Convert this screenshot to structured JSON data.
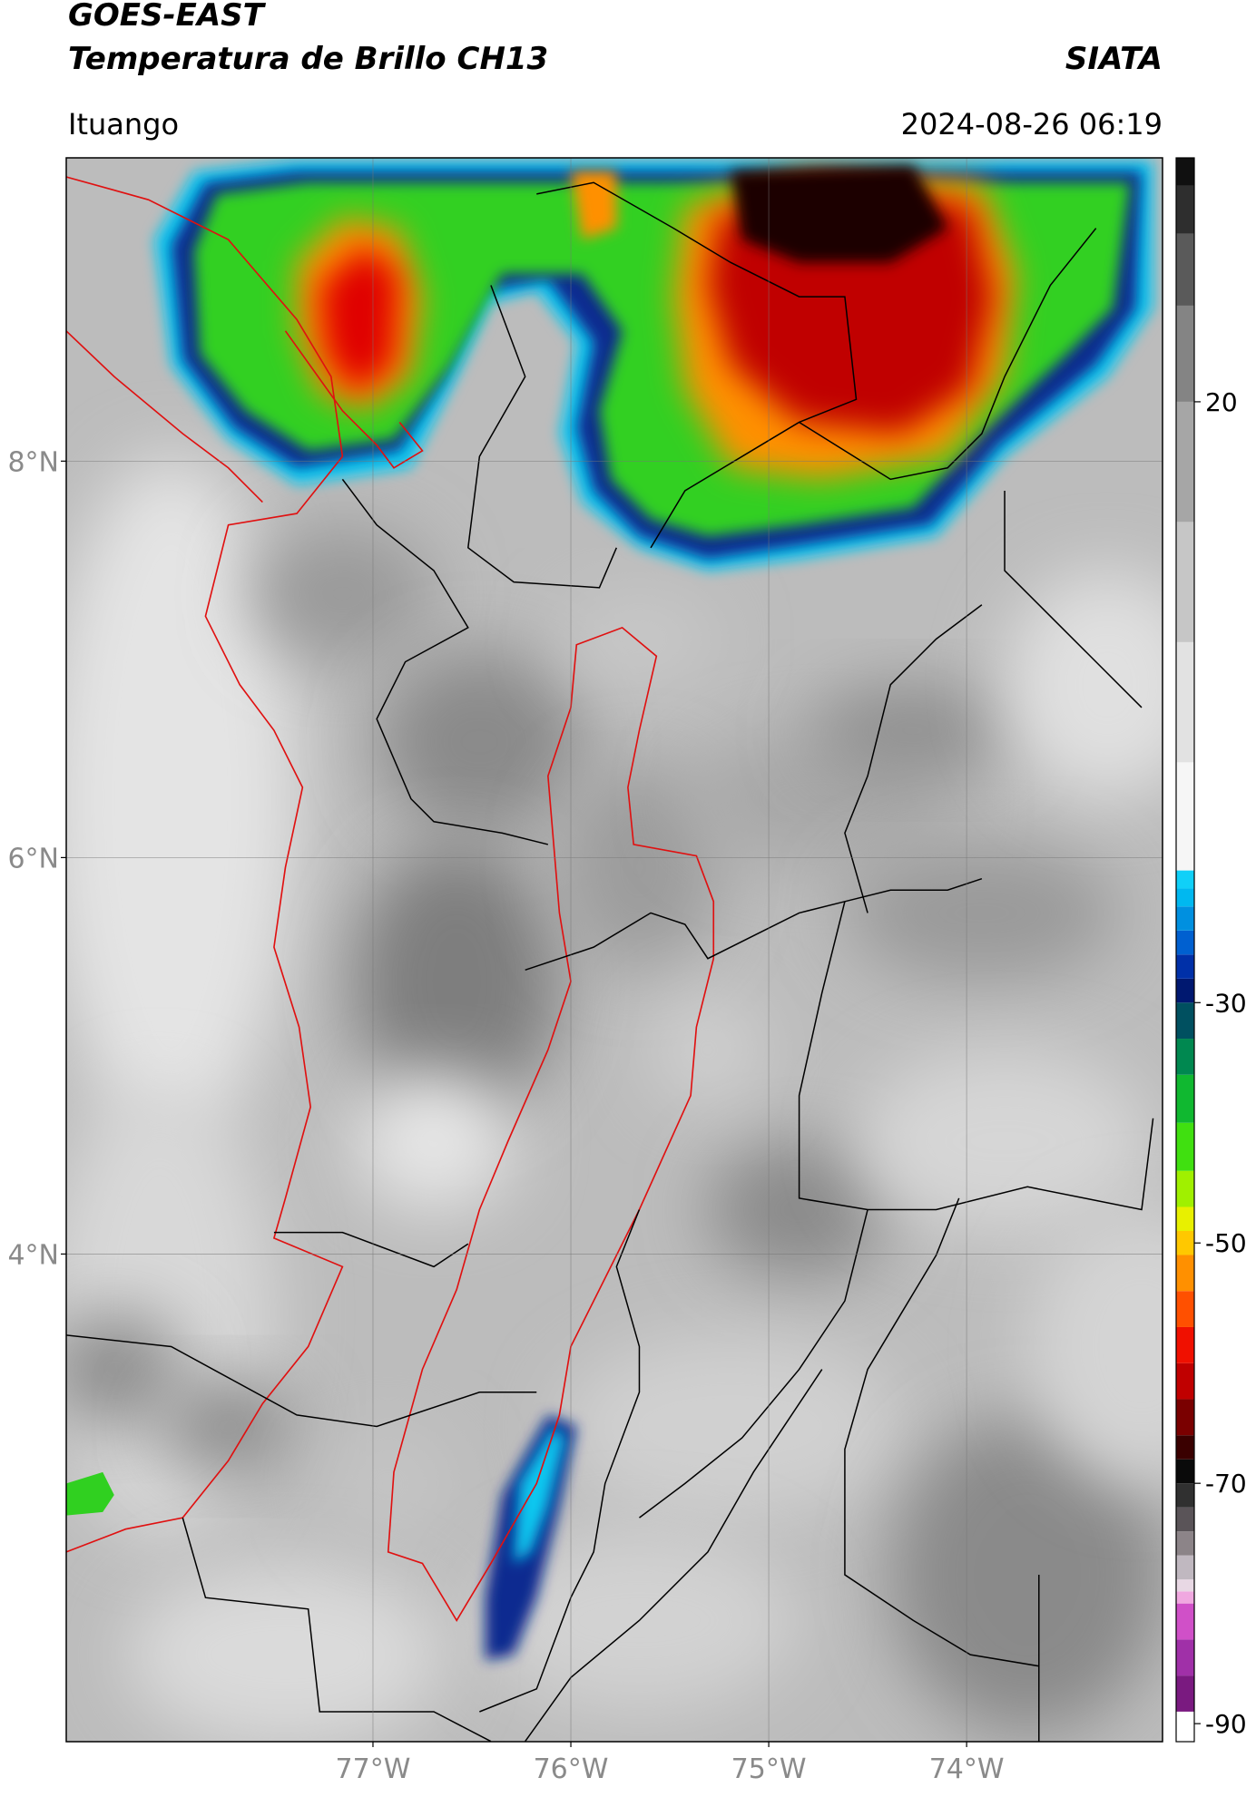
{
  "chart_data": {
    "type": "map",
    "title": "GOES-EAST",
    "subtitle": "Temperatura de Brillo CH13",
    "source": "SIATA",
    "location": "Ituango",
    "timestamp": "2024-08-26 06:19",
    "xlim": [
      -78.55,
      -73.01
    ],
    "ylim": [
      1.54,
      9.53
    ],
    "xticks": [
      {
        "value": -77,
        "label": "77°W"
      },
      {
        "value": -76,
        "label": "76°W"
      },
      {
        "value": -75,
        "label": "75°W"
      },
      {
        "value": -74,
        "label": "74°W"
      }
    ],
    "yticks": [
      {
        "value": 8,
        "label": "8°N"
      },
      {
        "value": 6,
        "label": "6°N"
      },
      {
        "value": 4,
        "label": "4°N"
      }
    ],
    "grid": true,
    "colorbar": {
      "clim": [
        -91.5,
        40.3
      ],
      "ticks": [
        20,
        -30,
        -50,
        -70,
        -90
      ],
      "bands": [
        {
          "value": -91.5,
          "color": "#ffffff"
        },
        {
          "value": -89,
          "color": "#7a1a80"
        },
        {
          "value": -86,
          "color": "#a030a8"
        },
        {
          "value": -83,
          "color": "#d050c8"
        },
        {
          "value": -80,
          "color": "#f0a8e0"
        },
        {
          "value": -79,
          "color": "#e8d8e4"
        },
        {
          "value": -78,
          "color": "#c0b8c0"
        },
        {
          "value": -76,
          "color": "#8c8488"
        },
        {
          "value": -74,
          "color": "#5a5458"
        },
        {
          "value": -72,
          "color": "#303030"
        },
        {
          "value": -70,
          "color": "#0a0a0a"
        },
        {
          "value": -68,
          "color": "#3a0000"
        },
        {
          "value": -66,
          "color": "#7a0000"
        },
        {
          "value": -63,
          "color": "#c00000"
        },
        {
          "value": -60,
          "color": "#f01000"
        },
        {
          "value": -57,
          "color": "#ff5000"
        },
        {
          "value": -54,
          "color": "#ff9000"
        },
        {
          "value": -51,
          "color": "#ffc800"
        },
        {
          "value": -49,
          "color": "#e8f000"
        },
        {
          "value": -47,
          "color": "#a0f000"
        },
        {
          "value": -44,
          "color": "#40e010"
        },
        {
          "value": -40,
          "color": "#10b830"
        },
        {
          "value": -36,
          "color": "#008850"
        },
        {
          "value": -33,
          "color": "#005060"
        },
        {
          "value": -30,
          "color": "#001870"
        },
        {
          "value": -28,
          "color": "#0030a8"
        },
        {
          "value": -26,
          "color": "#0060d0"
        },
        {
          "value": -24,
          "color": "#0090e0"
        },
        {
          "value": -22,
          "color": "#00b8f0"
        },
        {
          "value": -20.5,
          "color": "#10d0f8"
        },
        {
          "value": -19,
          "color": "#f6f6f6"
        },
        {
          "value": -10,
          "color": "#e2e2e2"
        },
        {
          "value": 0,
          "color": "#c6c6c6"
        },
        {
          "value": 10,
          "color": "#a6a6a6"
        },
        {
          "value": 20,
          "color": "#848484"
        },
        {
          "value": 28,
          "color": "#5a5a5a"
        },
        {
          "value": 34,
          "color": "#2e2e2e"
        },
        {
          "value": 38,
          "color": "#101010"
        }
      ]
    }
  }
}
